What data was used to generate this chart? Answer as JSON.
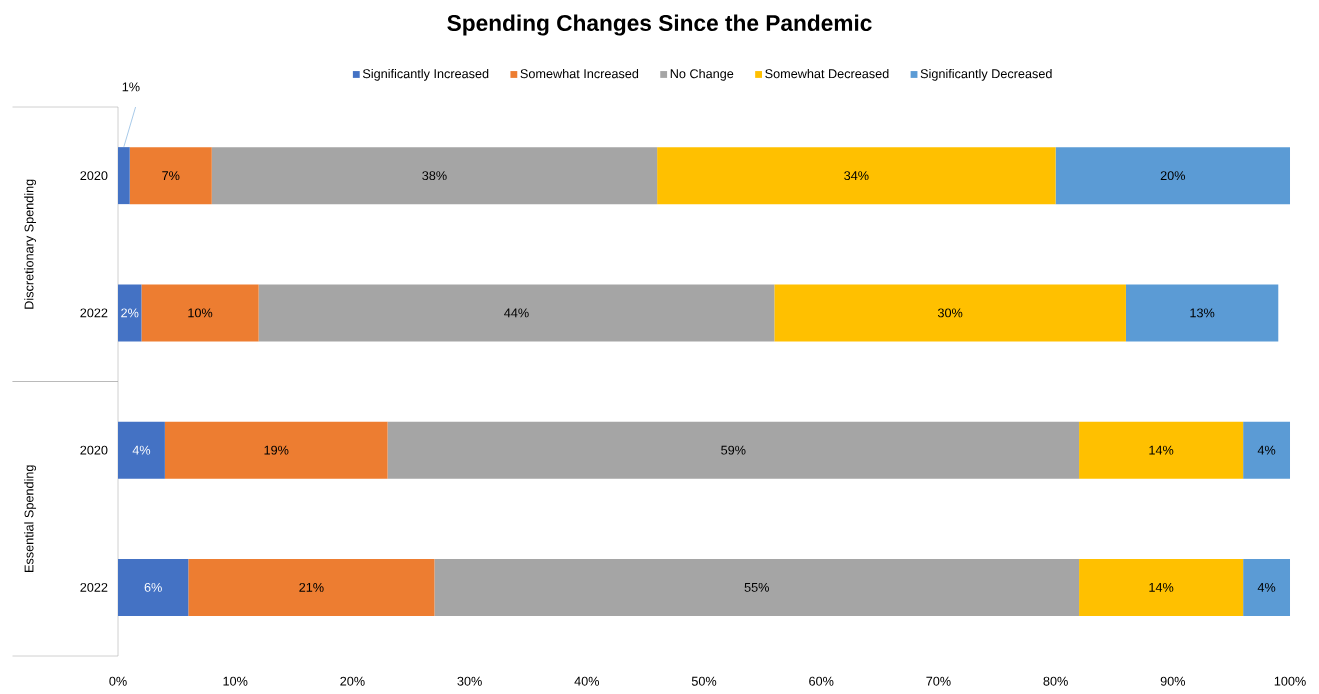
{
  "chart_data": {
    "type": "bar",
    "orientation": "horizontal",
    "stacked": true,
    "title": "Spending Changes Since the Pandemic",
    "categories": [
      "2020",
      "2022",
      "2020",
      "2022"
    ],
    "series": [
      {
        "name": "Significantly Increased",
        "color": "#4472c4",
        "values": [
          1,
          2,
          4,
          6
        ],
        "value_labels": [
          "1%",
          "2%",
          "4%",
          "6%"
        ]
      },
      {
        "name": "Somewhat Increased",
        "color": "#ed7d31",
        "values": [
          7,
          10,
          19,
          21
        ],
        "value_labels": [
          "7%",
          "10%",
          "19%",
          "21%"
        ]
      },
      {
        "name": "No Change",
        "color": "#a5a5a5",
        "values": [
          38,
          44,
          59,
          55
        ],
        "value_labels": [
          "38%",
          "44%",
          "59%",
          "55%"
        ]
      },
      {
        "name": "Somewhat Decreased",
        "color": "#ffc000",
        "values": [
          34,
          30,
          14,
          14
        ],
        "value_labels": [
          "34%",
          "30%",
          "14%",
          "14%"
        ]
      },
      {
        "name": "Significantly Decreased",
        "color": "#5b9bd5",
        "values": [
          20,
          13,
          4,
          4
        ],
        "value_labels": [
          "20%",
          "13%",
          "4%",
          "4%"
        ]
      }
    ],
    "xlim": [
      0,
      100
    ],
    "xticks": [
      {
        "value": 0,
        "label": "0%"
      },
      {
        "value": 10,
        "label": "10%"
      },
      {
        "value": 20,
        "label": "20%"
      },
      {
        "value": 30,
        "label": "30%"
      },
      {
        "value": 40,
        "label": "40%"
      },
      {
        "value": 50,
        "label": "50%"
      },
      {
        "value": 60,
        "label": "60%"
      },
      {
        "value": 70,
        "label": "70%"
      },
      {
        "value": 80,
        "label": "80%"
      },
      {
        "value": 90,
        "label": "90%"
      },
      {
        "value": 100,
        "label": "100%"
      }
    ],
    "annotations": [
      "Discretionary Spending",
      "Essential Spending"
    ],
    "legend": "top",
    "grid": false
  }
}
